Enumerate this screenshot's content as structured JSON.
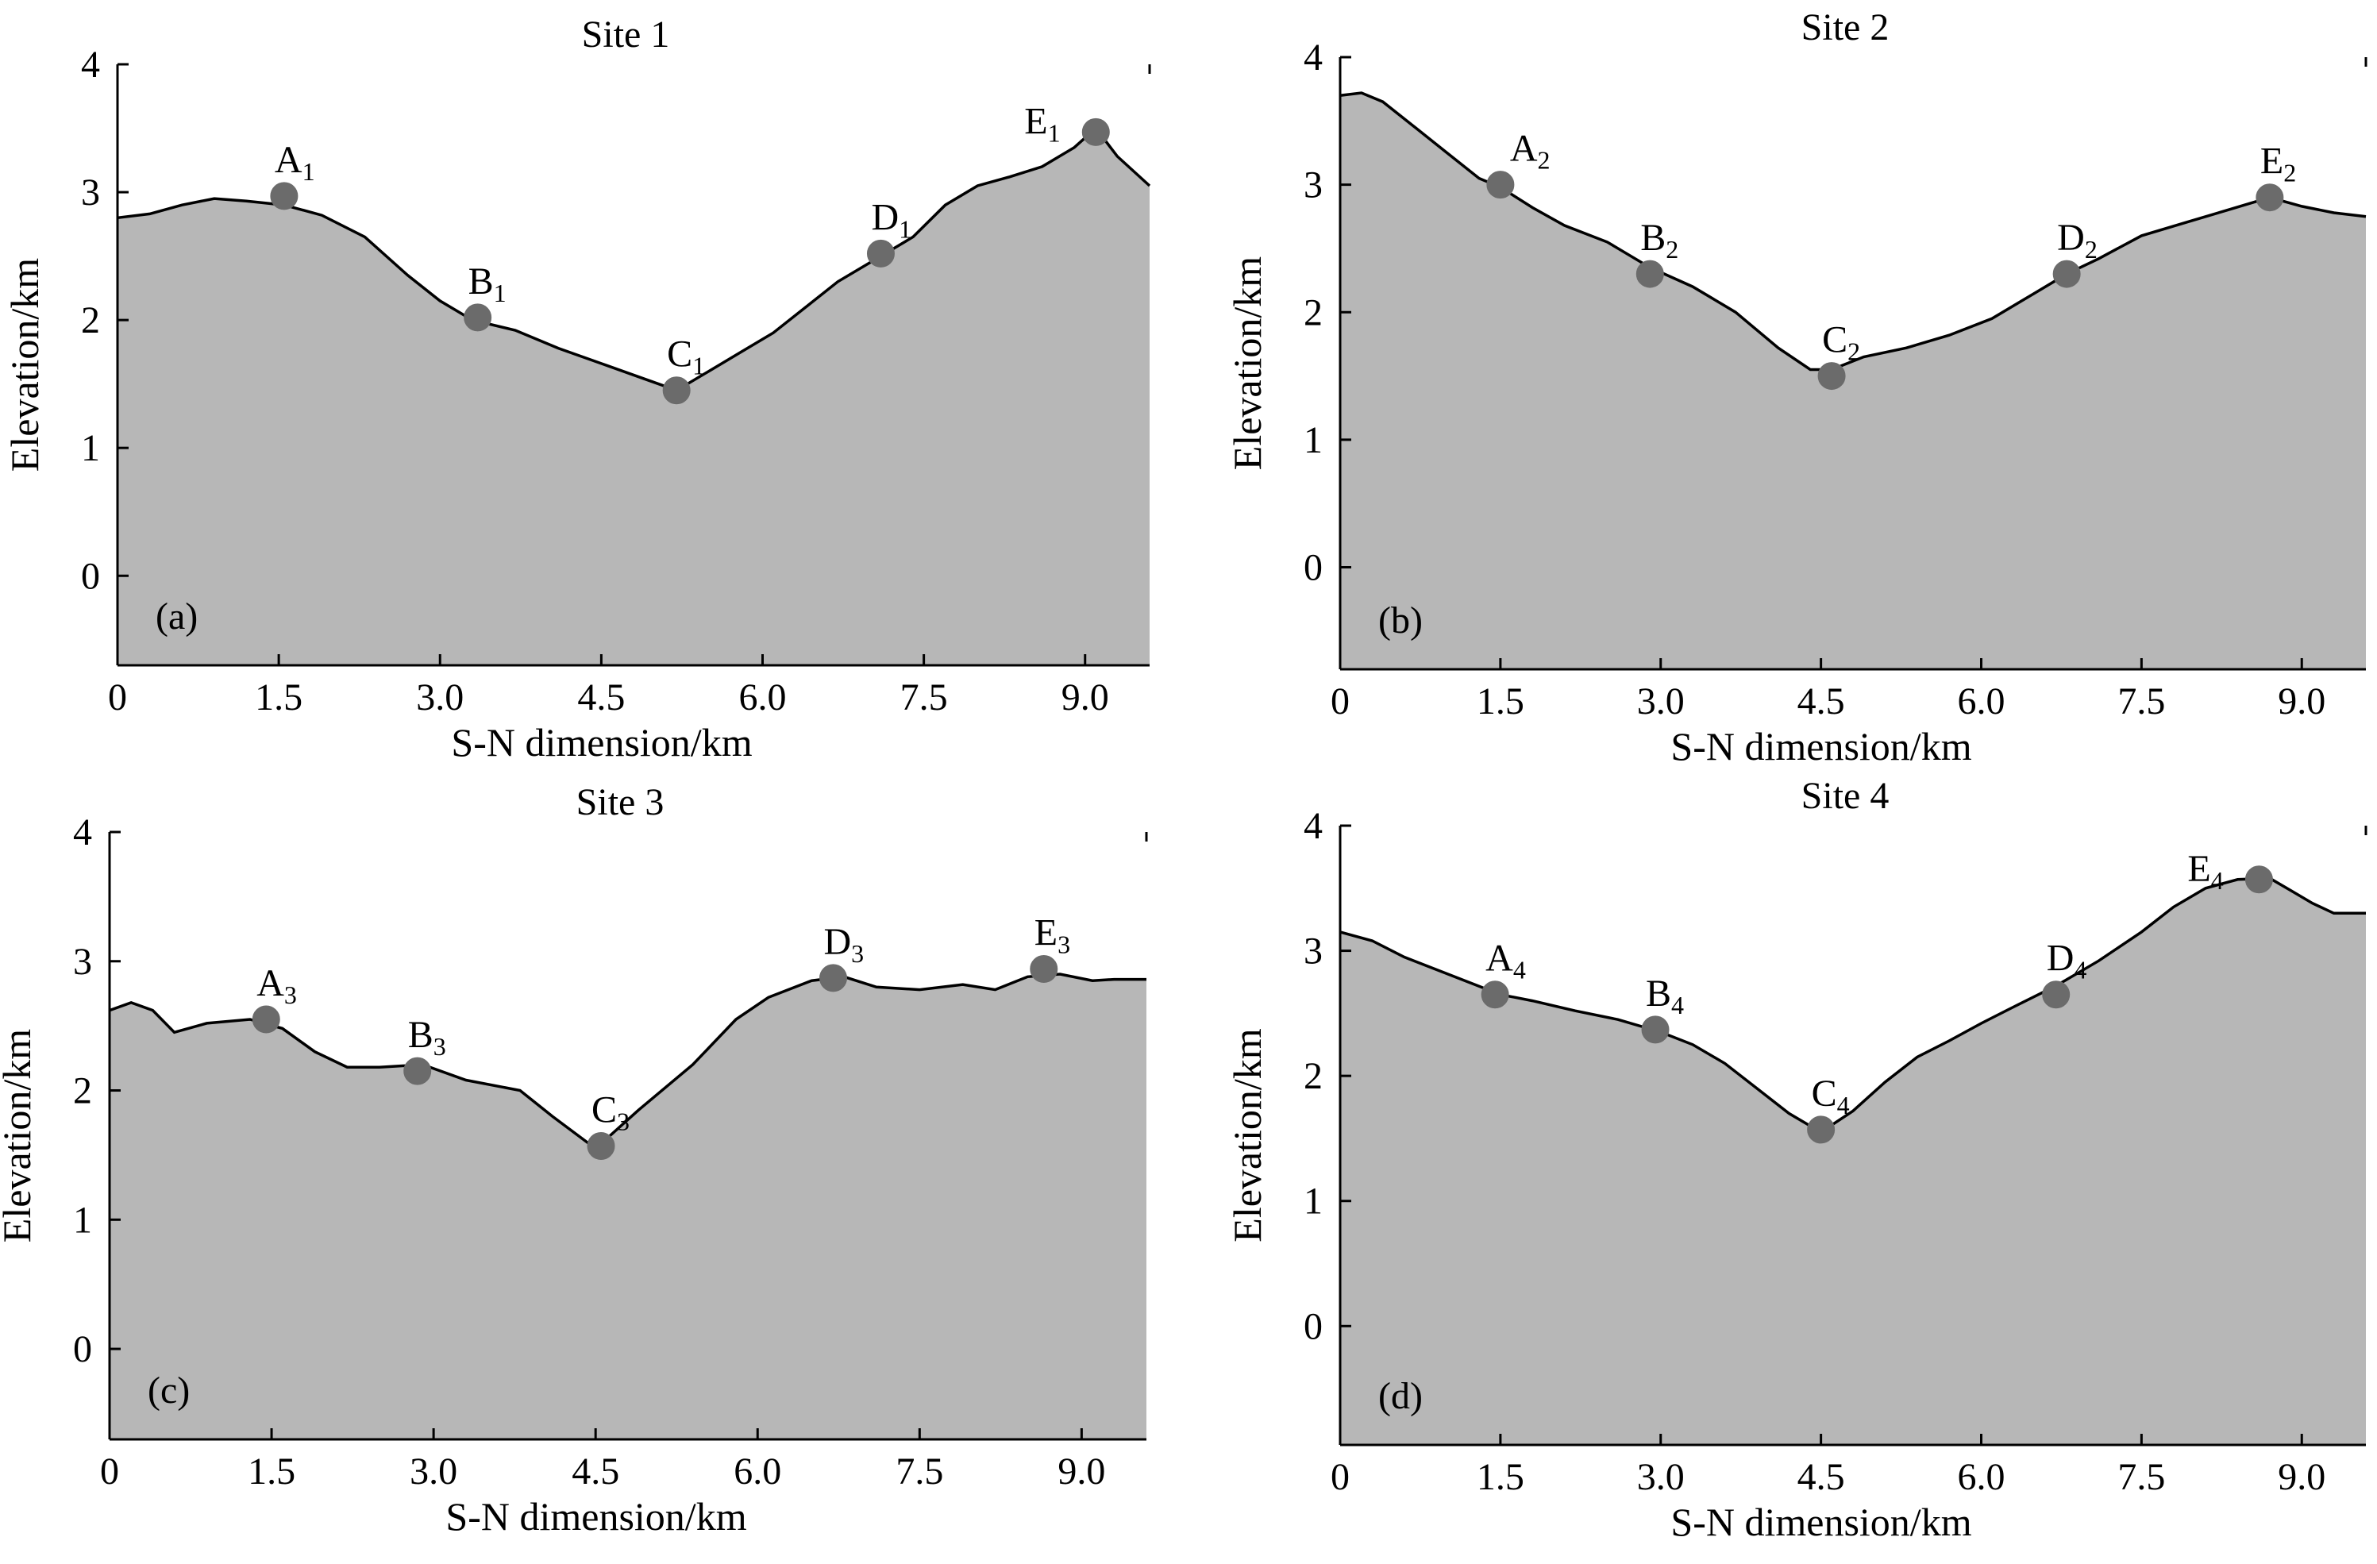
{
  "figure_colors": {
    "fill": "#b7b7b7",
    "line": "#000000",
    "marker": "#6b6b6b"
  },
  "chart_data": [
    {
      "type": "area",
      "title": "Site 1",
      "panel_label": "(a)",
      "xlabel": "S-N dimension/km",
      "ylabel": "Elevation/km",
      "xlim": [
        0,
        9.6
      ],
      "ylim": [
        -0.7,
        4
      ],
      "xticks": [
        "0",
        "1.5",
        "3.0",
        "4.5",
        "6.0",
        "7.5",
        "9.0"
      ],
      "yticks": [
        "0",
        "1",
        "2",
        "3",
        "4"
      ],
      "profile": {
        "x": [
          0,
          0.3,
          0.6,
          0.9,
          1.2,
          1.55,
          1.9,
          2.3,
          2.7,
          3.0,
          3.3,
          3.7,
          4.1,
          4.5,
          4.9,
          5.2,
          5.5,
          5.8,
          6.1,
          6.4,
          6.7,
          7.1,
          7.4,
          7.7,
          8.0,
          8.3,
          8.6,
          8.9,
          9.1,
          9.3,
          9.6
        ],
        "y": [
          2.8,
          2.83,
          2.9,
          2.95,
          2.93,
          2.9,
          2.82,
          2.65,
          2.35,
          2.15,
          2.0,
          1.92,
          1.78,
          1.66,
          1.54,
          1.45,
          1.6,
          1.75,
          1.9,
          2.1,
          2.3,
          2.5,
          2.65,
          2.9,
          3.05,
          3.12,
          3.2,
          3.35,
          3.5,
          3.28,
          3.05
        ]
      },
      "points": [
        {
          "letter": "A",
          "sub": "1",
          "x": 1.55,
          "y": 2.97,
          "label_pos": "above"
        },
        {
          "letter": "B",
          "sub": "1",
          "x": 3.35,
          "y": 2.02,
          "label_pos": "above"
        },
        {
          "letter": "C",
          "sub": "1",
          "x": 5.2,
          "y": 1.45,
          "label_pos": "above"
        },
        {
          "letter": "D",
          "sub": "1",
          "x": 7.1,
          "y": 2.52,
          "label_pos": "above"
        },
        {
          "letter": "E",
          "sub": "1",
          "x": 9.1,
          "y": 3.47,
          "label_pos": "left"
        }
      ]
    },
    {
      "type": "area",
      "title": "Site 2",
      "panel_label": "(b)",
      "xlabel": "S-N dimension/km",
      "ylabel": "Elevation/km",
      "xlim": [
        0,
        9.6
      ],
      "ylim": [
        -0.8,
        4
      ],
      "xticks": [
        "0",
        "1.5",
        "3.0",
        "4.5",
        "6.0",
        "7.5",
        "9.0"
      ],
      "yticks": [
        "0",
        "1",
        "2",
        "3",
        "4"
      ],
      "profile": {
        "x": [
          0,
          0.2,
          0.4,
          0.7,
          1.0,
          1.3,
          1.5,
          1.8,
          2.1,
          2.5,
          2.9,
          3.3,
          3.7,
          4.1,
          4.4,
          4.6,
          4.9,
          5.3,
          5.7,
          6.1,
          6.5,
          6.8,
          7.1,
          7.5,
          7.9,
          8.3,
          8.7,
          9.0,
          9.3,
          9.6
        ],
        "y": [
          3.7,
          3.72,
          3.65,
          3.45,
          3.25,
          3.05,
          2.98,
          2.82,
          2.68,
          2.55,
          2.35,
          2.2,
          2.0,
          1.72,
          1.55,
          1.55,
          1.65,
          1.72,
          1.82,
          1.95,
          2.15,
          2.3,
          2.42,
          2.6,
          2.7,
          2.8,
          2.9,
          2.83,
          2.78,
          2.75
        ]
      },
      "points": [
        {
          "letter": "A",
          "sub": "2",
          "x": 1.5,
          "y": 3.0,
          "label_pos": "above-right"
        },
        {
          "letter": "B",
          "sub": "2",
          "x": 2.9,
          "y": 2.3,
          "label_pos": "above"
        },
        {
          "letter": "C",
          "sub": "2",
          "x": 4.6,
          "y": 1.5,
          "label_pos": "above"
        },
        {
          "letter": "D",
          "sub": "2",
          "x": 6.8,
          "y": 2.3,
          "label_pos": "above"
        },
        {
          "letter": "E",
          "sub": "2",
          "x": 8.7,
          "y": 2.9,
          "label_pos": "above"
        }
      ]
    },
    {
      "type": "area",
      "title": "Site 3",
      "panel_label": "(c)",
      "xlabel": "S-N dimension/km",
      "ylabel": "Elevation/km",
      "xlim": [
        0,
        9.6
      ],
      "ylim": [
        -0.7,
        4
      ],
      "xticks": [
        "0",
        "1.5",
        "3.0",
        "4.5",
        "6.0",
        "7.5",
        "9.0"
      ],
      "yticks": [
        "0",
        "1",
        "2",
        "3",
        "4"
      ],
      "profile": {
        "x": [
          0,
          0.2,
          0.4,
          0.6,
          0.9,
          1.3,
          1.6,
          1.9,
          2.2,
          2.5,
          2.9,
          3.3,
          3.8,
          4.1,
          4.5,
          4.9,
          5.4,
          5.8,
          6.1,
          6.5,
          6.8,
          7.1,
          7.5,
          7.9,
          8.2,
          8.5,
          8.8,
          9.1,
          9.3,
          9.6
        ],
        "y": [
          2.62,
          2.68,
          2.62,
          2.45,
          2.52,
          2.55,
          2.48,
          2.3,
          2.18,
          2.18,
          2.2,
          2.08,
          2.0,
          1.8,
          1.55,
          1.85,
          2.2,
          2.55,
          2.72,
          2.85,
          2.88,
          2.8,
          2.78,
          2.82,
          2.78,
          2.88,
          2.9,
          2.85,
          2.86,
          2.86
        ]
      },
      "points": [
        {
          "letter": "A",
          "sub": "3",
          "x": 1.45,
          "y": 2.55,
          "label_pos": "above"
        },
        {
          "letter": "B",
          "sub": "3",
          "x": 2.85,
          "y": 2.15,
          "label_pos": "above"
        },
        {
          "letter": "C",
          "sub": "3",
          "x": 4.55,
          "y": 1.57,
          "label_pos": "above"
        },
        {
          "letter": "D",
          "sub": "3",
          "x": 6.7,
          "y": 2.87,
          "label_pos": "above"
        },
        {
          "letter": "E",
          "sub": "3",
          "x": 8.65,
          "y": 2.94,
          "label_pos": "above"
        }
      ]
    },
    {
      "type": "area",
      "title": "Site 4",
      "panel_label": "(d)",
      "xlabel": "S-N dimension/km",
      "ylabel": "Elevation/km",
      "xlim": [
        0,
        9.6
      ],
      "ylim": [
        -0.95,
        4
      ],
      "xticks": [
        "0",
        "1.5",
        "3.0",
        "4.5",
        "6.0",
        "7.5",
        "9.0"
      ],
      "yticks": [
        "0",
        "1",
        "2",
        "3",
        "4"
      ],
      "profile": {
        "x": [
          0,
          0.3,
          0.6,
          0.9,
          1.2,
          1.5,
          1.8,
          2.2,
          2.6,
          3.0,
          3.3,
          3.6,
          3.9,
          4.2,
          4.5,
          4.8,
          5.1,
          5.4,
          5.7,
          6.0,
          6.3,
          6.7,
          7.1,
          7.5,
          7.8,
          8.1,
          8.4,
          8.7,
          8.9,
          9.1,
          9.3,
          9.6
        ],
        "y": [
          3.15,
          3.08,
          2.95,
          2.85,
          2.75,
          2.65,
          2.6,
          2.52,
          2.45,
          2.35,
          2.25,
          2.1,
          1.9,
          1.7,
          1.55,
          1.72,
          1.95,
          2.15,
          2.28,
          2.42,
          2.55,
          2.72,
          2.92,
          3.15,
          3.35,
          3.5,
          3.57,
          3.58,
          3.48,
          3.38,
          3.3,
          3.3
        ]
      },
      "points": [
        {
          "letter": "A",
          "sub": "4",
          "x": 1.45,
          "y": 2.65,
          "label_pos": "above"
        },
        {
          "letter": "B",
          "sub": "4",
          "x": 2.95,
          "y": 2.37,
          "label_pos": "above"
        },
        {
          "letter": "C",
          "sub": "4",
          "x": 4.5,
          "y": 1.57,
          "label_pos": "above"
        },
        {
          "letter": "D",
          "sub": "4",
          "x": 6.7,
          "y": 2.65,
          "label_pos": "above"
        },
        {
          "letter": "E",
          "sub": "4",
          "x": 8.6,
          "y": 3.57,
          "label_pos": "left"
        }
      ]
    }
  ]
}
